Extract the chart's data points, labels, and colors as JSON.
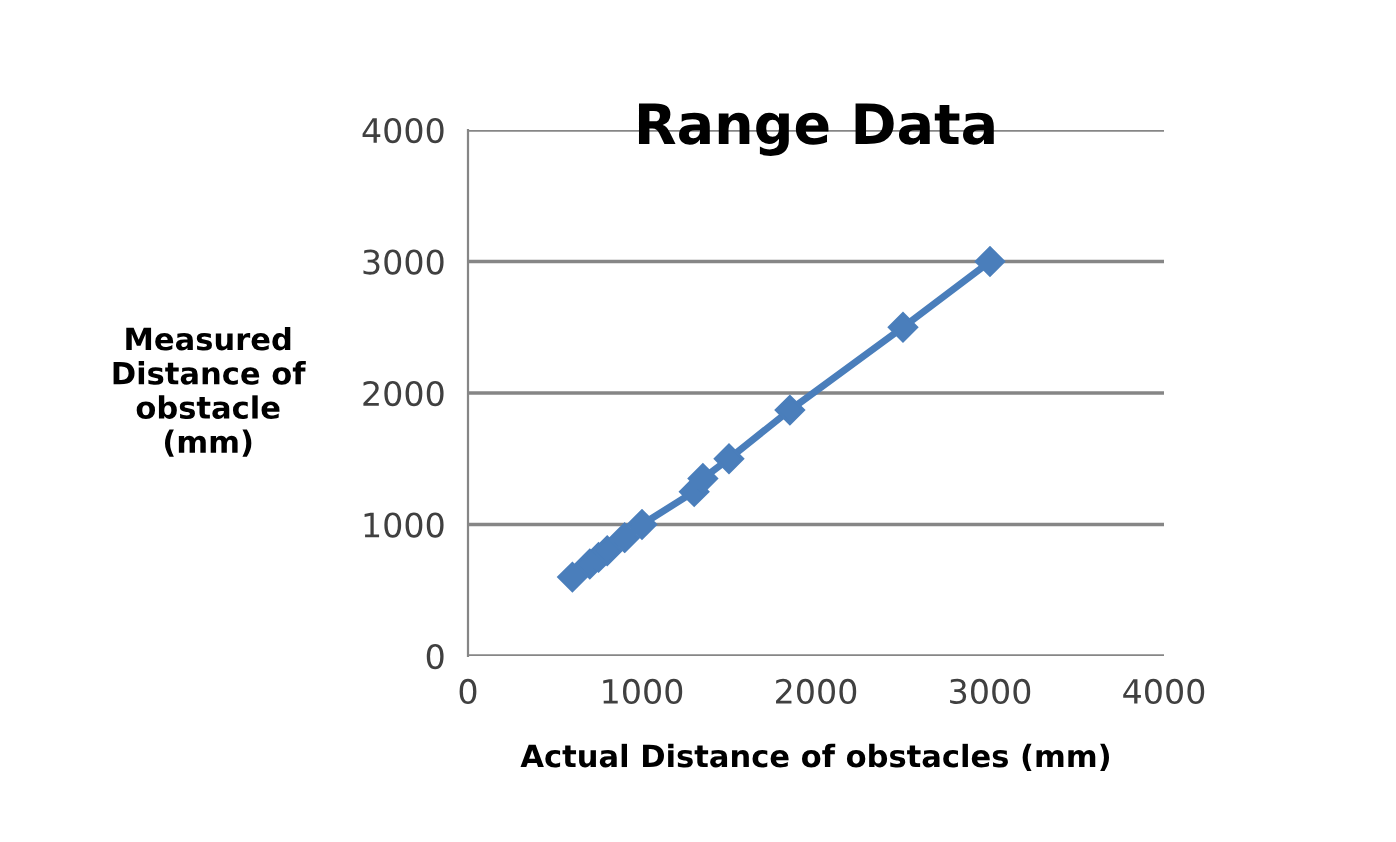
{
  "chart_data": {
    "type": "line",
    "title": "Range Data",
    "xlabel": "Actual Distance of obstacles (mm)",
    "ylabel": "Measured\nDistance of\nobstacle\n(mm)",
    "x": [
      600,
      700,
      750,
      800,
      900,
      1000,
      1300,
      1350,
      1500,
      1850,
      2500,
      3000
    ],
    "series": [
      {
        "color": "#4a7ebb",
        "values": [
          600,
          700,
          750,
          800,
          900,
          1000,
          1250,
          1350,
          1500,
          1870,
          2500,
          3000
        ]
      }
    ],
    "marker": "diamond",
    "xlim": [
      0,
      4000
    ],
    "xticks": [
      0,
      1000,
      2000,
      3000,
      4000
    ],
    "ylim": [
      0,
      4000
    ],
    "yticks": [
      0,
      1000,
      2000,
      3000,
      4000
    ],
    "grid": "y"
  }
}
